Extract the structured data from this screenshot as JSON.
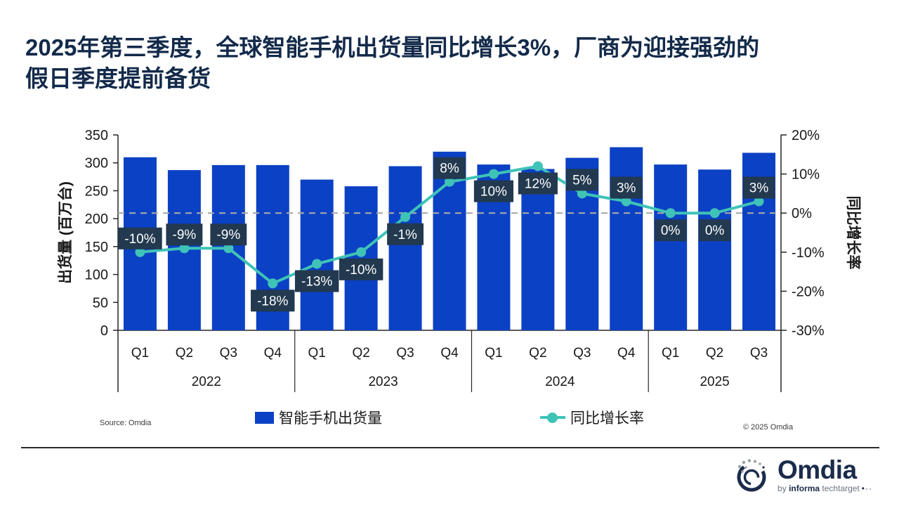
{
  "title_lines": [
    "2025年第三季度，全球智能手机出货量同比增长3%，厂商为迎接强劲的",
    "假日季度提前备货"
  ],
  "chart_data": {
    "type": "combo-bar-line",
    "categories": [
      "Q1",
      "Q2",
      "Q3",
      "Q4",
      "Q1",
      "Q2",
      "Q3",
      "Q4",
      "Q1",
      "Q2",
      "Q3",
      "Q4",
      "Q1",
      "Q2",
      "Q3"
    ],
    "groups": [
      {
        "year": "2022",
        "quarters": 4
      },
      {
        "year": "2023",
        "quarters": 4
      },
      {
        "year": "2024",
        "quarters": 4
      },
      {
        "year": "2025",
        "quarters": 3
      }
    ],
    "series": [
      {
        "name": "智能手机出货量",
        "type": "bar",
        "axis": "left",
        "color": "#0B41C4",
        "values": [
          310,
          287,
          296,
          296,
          270,
          258,
          294,
          320,
          297,
          289,
          309,
          328,
          297,
          288,
          318
        ]
      },
      {
        "name": "同比增长率",
        "type": "line",
        "axis": "right",
        "color": "#3FC3B7",
        "values": [
          -10,
          -9,
          -9,
          -18,
          -13,
          -10,
          -1,
          8,
          10,
          12,
          5,
          3,
          0,
          0,
          3
        ],
        "point_labels": [
          "-10%",
          "-9%",
          "-9%",
          "-18%",
          "-13%",
          "-10%",
          "-1%",
          "8%",
          "10%",
          "12%",
          "5%",
          "3%",
          "0%",
          "0%",
          "3%"
        ],
        "label_side": [
          "above",
          "above",
          "above",
          "below",
          "below",
          "below",
          "below",
          "above",
          "below",
          "below",
          "above",
          "above",
          "below",
          "below",
          "above"
        ],
        "label_bg": "#22394F",
        "label_color": "#FFFFFF"
      }
    ],
    "left_axis": {
      "title": "出货量 (百万台)",
      "min": 0,
      "max": 350,
      "tick_step": 50,
      "tick_labels": [
        "350",
        "300",
        "250",
        "200",
        "150",
        "100",
        "50",
        "0"
      ]
    },
    "right_axis": {
      "title": "同比增长率",
      "min": -30,
      "max": 20,
      "tick_step": 10,
      "tick_labels": [
        "20%",
        "10%",
        "0%",
        "-10%",
        "-20%",
        "-30%"
      ]
    },
    "zero_line": {
      "show": true,
      "color": "#A9A9A9",
      "style": "dashed"
    },
    "grid": false,
    "legend_position": "bottom"
  },
  "legend": [
    {
      "label": "智能手机出货量",
      "marker": "bar-swatch-icon"
    },
    {
      "label": "同比增长率",
      "marker": "line-swatch-icon"
    }
  ],
  "footer": {
    "source": "Source: Omdia",
    "copyright": "© 2025 Omdia"
  },
  "logo": {
    "name": "Omdia",
    "tagline_by": "by",
    "tagline_informa": "informa",
    "tagline_tt": "techtarget",
    "tagline_dots": "•··"
  }
}
